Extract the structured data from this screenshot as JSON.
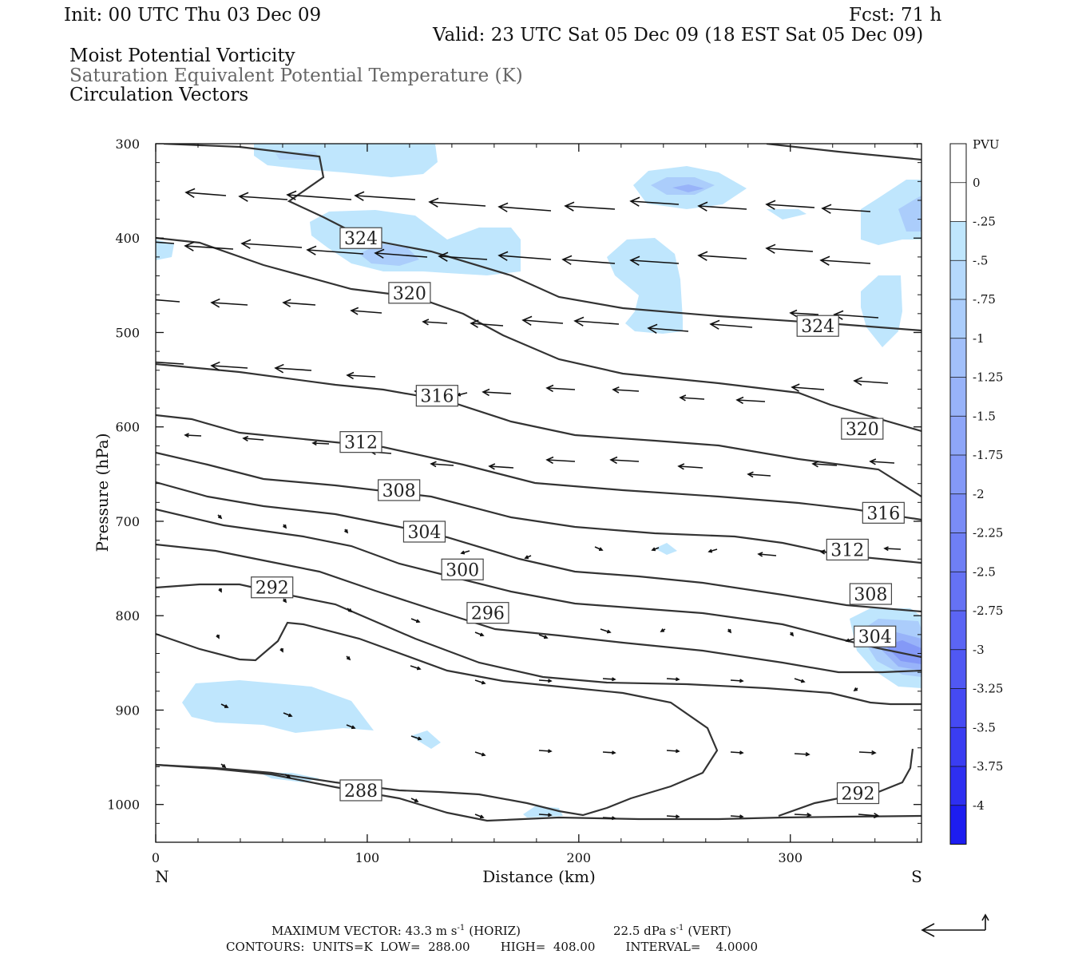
{
  "header": {
    "init": "Init: 00 UTC Thu 03 Dec 09",
    "fcst": "Fcst:   71 h",
    "valid": "Valid: 23 UTC Sat 05 Dec 09 (18 EST Sat 05 Dec 09)",
    "field1": "Moist Potential Vorticity",
    "field2": "Saturation Equivalent Potential Temperature (K)",
    "field3": "Circulation Vectors"
  },
  "chart_data": {
    "type": "cross-section",
    "xlabel": "Distance (km)",
    "ylabel": "Pressure (hPa)",
    "xlim": [
      0,
      362
    ],
    "ylim": [
      1040,
      300
    ],
    "x_ticks": [
      0,
      100,
      200,
      300
    ],
    "x_tick_labels": [
      "0",
      "100",
      "200",
      "300"
    ],
    "y_ticks": [
      300,
      400,
      500,
      600,
      700,
      800,
      900,
      1000
    ],
    "y_tick_labels": [
      "300",
      "400",
      "500",
      "600",
      "700",
      "800",
      "900",
      "1000"
    ],
    "left_end_label": "N",
    "right_end_label": "S",
    "colorbar": {
      "unit": "PVU",
      "levels": [
        "0",
        "-.25",
        "-.5",
        "-.75",
        "-1",
        "-1.25",
        "-1.5",
        "-1.75",
        "-2",
        "-2.25",
        "-2.5",
        "-2.75",
        "-3",
        "-3.25",
        "-3.5",
        "-3.75",
        "-4"
      ],
      "colors": [
        "#ffffff",
        "#ffffff",
        "#bfe6fd",
        "#b5d9fc",
        "#abcdfb",
        "#a2c0fa",
        "#98b3f9",
        "#8ea6f8",
        "#8499f7",
        "#7a8cf6",
        "#6f7ff5",
        "#6572f4",
        "#5b65f4",
        "#5058f3",
        "#454af3",
        "#3a3df2",
        "#2e2ff1",
        "#1d1df0"
      ]
    },
    "contour_labels": [
      {
        "text": "324",
        "x": 97,
        "p": 400
      },
      {
        "text": "320",
        "x": 120,
        "p": 458
      },
      {
        "text": "324",
        "x": 313,
        "p": 493
      },
      {
        "text": "316",
        "x": 133,
        "p": 567
      },
      {
        "text": "320",
        "x": 334,
        "p": 602
      },
      {
        "text": "312",
        "x": 97,
        "p": 616
      },
      {
        "text": "308",
        "x": 115,
        "p": 667
      },
      {
        "text": "316",
        "x": 344,
        "p": 691
      },
      {
        "text": "304",
        "x": 127,
        "p": 711
      },
      {
        "text": "312",
        "x": 327,
        "p": 730
      },
      {
        "text": "300",
        "x": 145,
        "p": 751
      },
      {
        "text": "292",
        "x": 55,
        "p": 770
      },
      {
        "text": "308",
        "x": 338,
        "p": 777
      },
      {
        "text": "296",
        "x": 157,
        "p": 797
      },
      {
        "text": "304",
        "x": 340,
        "p": 822
      },
      {
        "text": "288",
        "x": 97,
        "p": 985
      },
      {
        "text": "292",
        "x": 332,
        "p": 988
      }
    ],
    "footer": {
      "max_vector": "MAXIMUM VECTOR:  43.3 m s",
      "horiz": "(HORIZ)",
      "vert_value": "22.5 dPa s",
      "vert": "(VERT)",
      "exponent": "-1",
      "contours": "CONTOURS:  UNITS=K  LOW=  288.00        HIGH=  408.00        INTERVAL=    4.0000"
    }
  }
}
